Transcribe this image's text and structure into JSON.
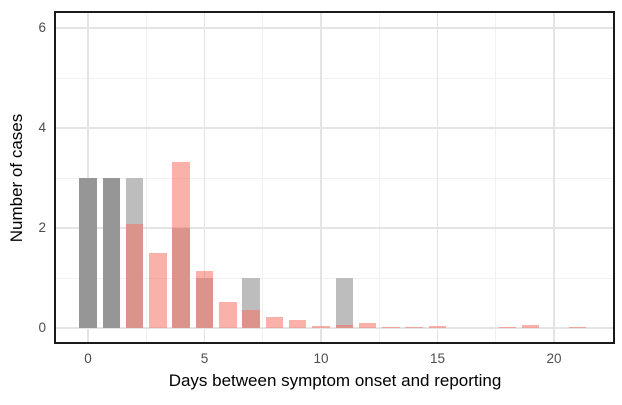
{
  "chart_data": {
    "type": "bar",
    "title": "",
    "xlabel": "Days between symptom onset and reporting",
    "ylabel": "Number of cases",
    "x_ticks": [
      0,
      5,
      10,
      15,
      20
    ],
    "y_ticks": [
      0,
      2,
      4,
      6
    ],
    "x_minor_gridlines": [
      2.5,
      7.5,
      12.5,
      17.5
    ],
    "y_minor_gridlines": [
      1,
      3,
      5
    ],
    "xlim": [
      -1.5,
      22.5
    ],
    "ylim": [
      -0.28,
      6.3
    ],
    "grid": "major and minor gridlines on white panel, black panel border, no tick marks",
    "legend": "none",
    "bar_width_days": 0.75,
    "series": [
      {
        "name": "grey-histogram",
        "x": [
          0,
          1,
          2,
          4,
          5,
          7,
          11
        ],
        "values": [
          3,
          3,
          3,
          2,
          1,
          1,
          1
        ],
        "fill_light": "#BDBDBD",
        "fill_dark": "#969696",
        "dark_x": [
          0,
          1
        ]
      },
      {
        "name": "pink-histogram",
        "x": [
          2,
          3,
          4,
          5,
          6,
          7,
          8,
          9,
          10,
          11,
          12,
          13,
          14,
          15,
          18,
          19,
          21
        ],
        "values": [
          2.08,
          1.5,
          3.32,
          1.15,
          0.52,
          0.36,
          0.23,
          0.16,
          0.05,
          0.06,
          0.1,
          0.03,
          0.03,
          0.05,
          0.03,
          0.07,
          0.03
        ],
        "fill": "rgba(246,113,100,0.55)"
      }
    ],
    "colors": {
      "panel_background": "#FFFFFF",
      "panel_border": "#1A1A1A",
      "grid_major": "#E4E4E4",
      "grid_minor": "#F1F1F1",
      "tick_label": "#4D4D4D",
      "axis_title": "#000000"
    }
  }
}
